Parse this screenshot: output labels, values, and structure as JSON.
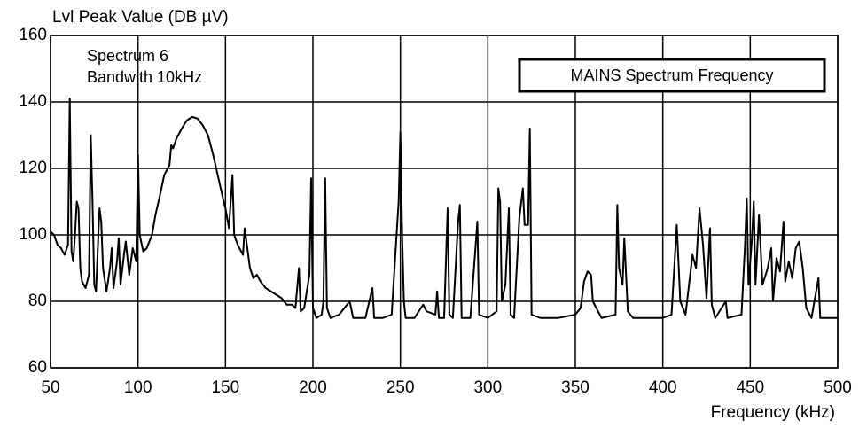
{
  "chart_data": {
    "type": "line",
    "title": "MAINS Spectrum Frequency",
    "y_label": "Lvl Peak Value (DB µV)",
    "x_label": "Frequency (kHz)",
    "annotations": [
      "Spectrum 6",
      "Bandwith 10kHz"
    ],
    "color": "#000000",
    "grid": true,
    "xlim": [
      50,
      500
    ],
    "xticks": [
      50,
      100,
      150,
      200,
      250,
      300,
      350,
      400,
      450,
      500
    ],
    "ylim": [
      60,
      160
    ],
    "yticks": [
      60,
      80,
      100,
      120,
      140,
      160
    ],
    "x": [
      50,
      52,
      54,
      56,
      58,
      60,
      61,
      62,
      63,
      64,
      65,
      66,
      67,
      68,
      70,
      72,
      73,
      74,
      75,
      76,
      78,
      79,
      80,
      82,
      84,
      85,
      86,
      88,
      89,
      90,
      92,
      93,
      95,
      97,
      99,
      100,
      101,
      103,
      105,
      108,
      110,
      113,
      115,
      118,
      119,
      120,
      122,
      125,
      128,
      131,
      134,
      137,
      140,
      143,
      146,
      149,
      150,
      152,
      154,
      155,
      157,
      160,
      161,
      162,
      164,
      166,
      168,
      170,
      173,
      176,
      179,
      182,
      185,
      188,
      190,
      192,
      193,
      195,
      198,
      199,
      200,
      202,
      205,
      206,
      207,
      208,
      210,
      215,
      221,
      223,
      230,
      234,
      235,
      240,
      245,
      249,
      250,
      251,
      252,
      253,
      258,
      263,
      265,
      270,
      271,
      272,
      275,
      277,
      278,
      280,
      283,
      284,
      285,
      290,
      294,
      295,
      300,
      305,
      306,
      307,
      308,
      310,
      312,
      313,
      315,
      318,
      320,
      321,
      323,
      324,
      325,
      330,
      340,
      350,
      353,
      355,
      357,
      359,
      360,
      362,
      365,
      373,
      374,
      375,
      377,
      378,
      380,
      383,
      390,
      400,
      405,
      408,
      410,
      413,
      417,
      419,
      421,
      423,
      425,
      427,
      428,
      430,
      436,
      437,
      445,
      447,
      448,
      449,
      451,
      452,
      453,
      455,
      457,
      460,
      462,
      463,
      465,
      467,
      469,
      470,
      472,
      474,
      476,
      478,
      480,
      482,
      485,
      488,
      489,
      490,
      495,
      500
    ],
    "values": [
      101,
      100,
      97,
      96,
      94,
      97,
      141,
      95,
      92,
      100,
      110,
      108,
      90,
      86,
      84,
      88,
      130,
      110,
      85,
      83,
      108,
      104,
      90,
      83,
      90,
      96,
      84,
      92,
      99,
      85,
      94,
      98,
      88,
      96,
      92,
      124,
      100,
      95,
      96,
      100,
      106,
      113,
      118,
      121,
      127,
      126,
      129,
      132,
      134.5,
      135.5,
      135,
      133,
      130,
      124,
      117,
      110,
      108,
      102,
      118,
      100,
      97,
      94,
      102,
      98,
      90,
      87,
      88,
      86,
      84,
      83,
      82,
      81,
      79,
      79,
      78,
      90,
      77,
      78,
      88,
      117,
      78,
      75,
      76,
      80,
      117,
      78,
      75,
      76,
      80,
      75,
      75,
      84,
      75,
      75,
      76,
      110,
      131,
      100,
      80,
      75,
      75,
      79,
      77,
      76,
      83,
      75,
      75,
      108,
      76,
      75,
      104,
      109,
      75,
      75,
      104,
      76,
      75,
      77,
      114,
      110,
      80,
      85,
      108,
      76,
      75,
      105,
      114,
      103,
      103,
      132,
      76,
      75,
      75,
      76,
      78,
      86,
      89,
      88,
      80,
      78,
      75,
      76,
      109,
      90,
      85,
      99,
      77,
      75,
      75,
      75,
      76,
      103,
      80,
      76,
      94,
      90,
      108,
      97,
      81,
      102,
      79,
      75,
      80,
      75,
      76,
      97,
      111,
      85,
      99,
      110,
      85,
      106,
      85,
      90,
      96,
      80,
      93,
      89,
      104,
      86,
      92,
      87,
      96,
      98,
      90,
      78,
      75,
      84,
      87,
      75,
      75,
      75
    ]
  }
}
